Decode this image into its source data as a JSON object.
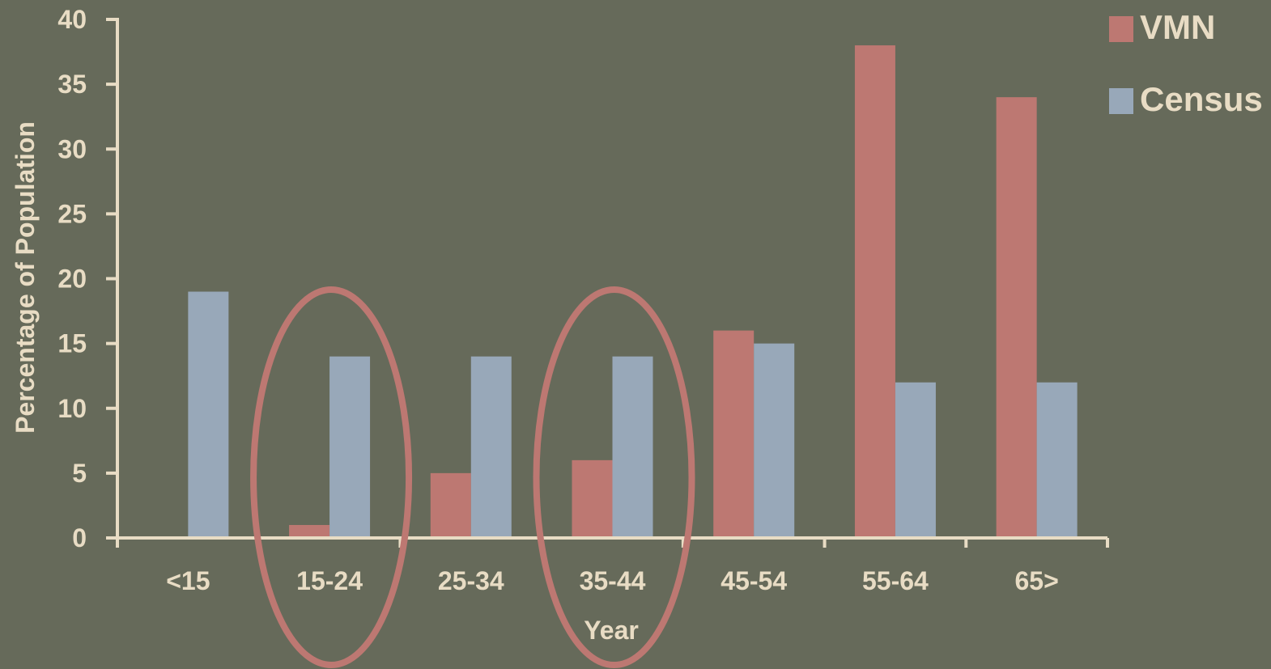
{
  "chart_data": {
    "type": "bar",
    "title": "",
    "xlabel": "Year",
    "ylabel": "Percentage of Population",
    "categories": [
      "<15",
      "15-24",
      "25-34",
      "35-44",
      "45-54",
      "55-64",
      "65>"
    ],
    "series": [
      {
        "name": "VMN",
        "values": [
          0,
          1,
          5,
          6,
          16,
          38,
          34
        ],
        "color": "#bd7872"
      },
      {
        "name": "Census",
        "values": [
          19,
          14,
          14,
          14,
          15,
          12,
          12
        ],
        "color": "#98a8b9"
      }
    ],
    "ylim": [
      0,
      40
    ],
    "yticks": [
      0,
      5,
      10,
      15,
      20,
      25,
      30,
      35,
      40
    ],
    "grid": false,
    "legend_position": "top-right",
    "highlighted_categories": [
      "15-24",
      "35-44"
    ],
    "highlight_color": "#bd7872"
  }
}
